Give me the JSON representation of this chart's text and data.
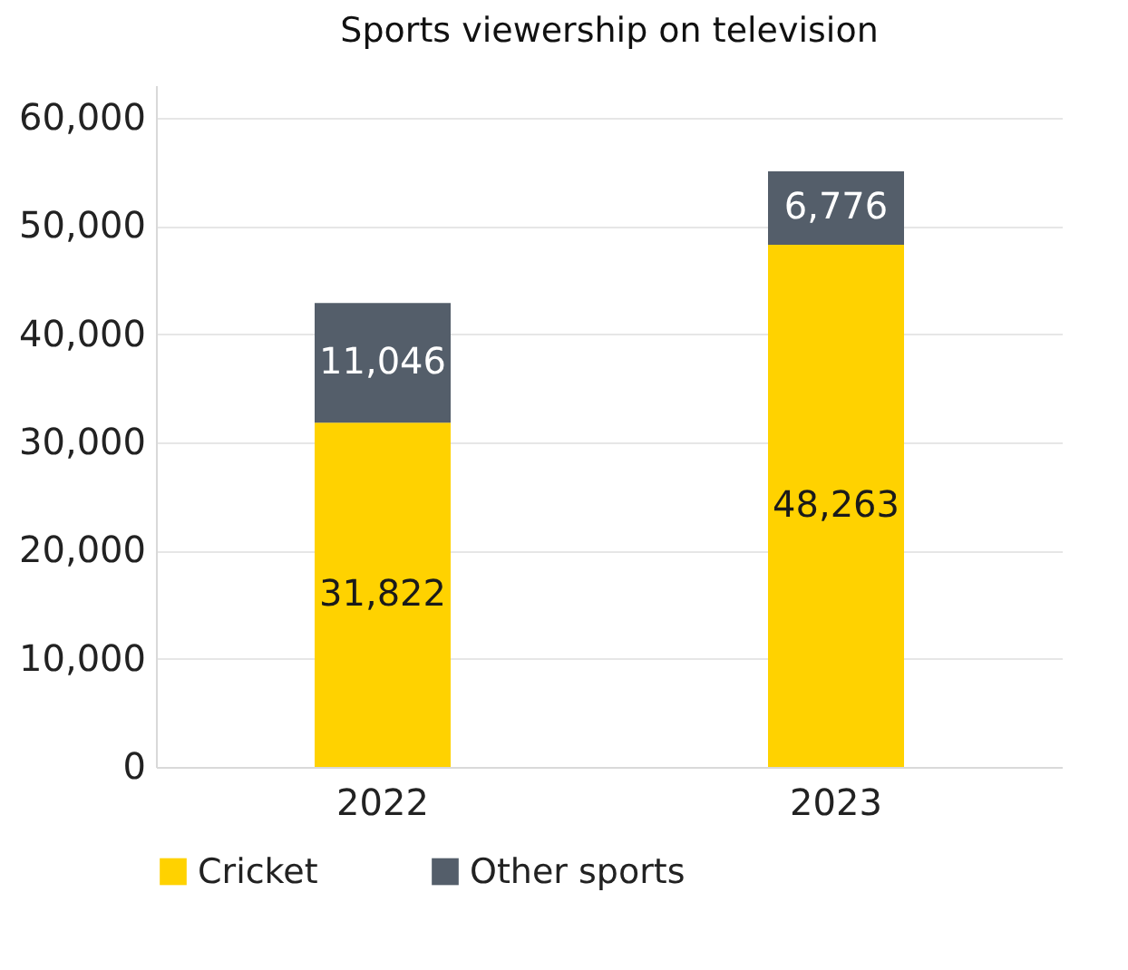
{
  "chart_data": {
    "type": "bar",
    "title": "Sports viewership on television",
    "categories": [
      "2022",
      "2023"
    ],
    "stacked": true,
    "series": [
      {
        "name": "Cricket",
        "color": "#ffd200",
        "values": [
          31822,
          48263
        ],
        "value_labels": [
          "31,822",
          "48,263"
        ]
      },
      {
        "name": "Other sports",
        "color": "#545e6a",
        "values": [
          11046,
          6776
        ],
        "value_labels": [
          "11,046",
          "6,776"
        ]
      }
    ],
    "ylim": [
      0,
      63000
    ],
    "yticks": [
      0,
      {
        "value": 10000,
        "label": "10,000"
      },
      {
        "value": 20000,
        "label": "20,000"
      },
      {
        "value": 30000,
        "label": "30,000"
      },
      {
        "value": 40000,
        "label": "40,000"
      },
      {
        "value": 50000,
        "label": "50,000"
      },
      {
        "value": 60000,
        "label": "60,000"
      }
    ],
    "grid": "y",
    "legend": "bottom"
  }
}
